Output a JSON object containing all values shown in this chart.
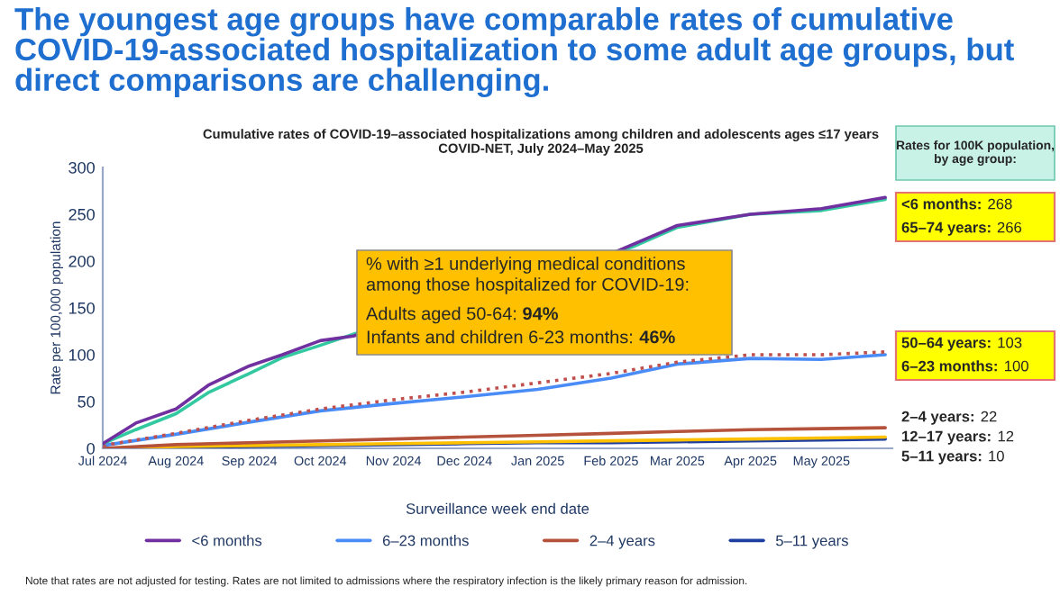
{
  "chart_data": {
    "type": "line",
    "title": "The youngest age groups have comparable rates of cumulative COVID-19-associated hospitalization to some adult age groups, but direct comparisons are challenging.",
    "subtitle": "Cumulative rates of COVID-19–associated hospitalizations among children and adolescents ages ≤17 years\nCOVID-NET, July 2024–May 2025",
    "xlabel": "Surveillance week end date",
    "ylabel": "Rate per 100,000 population",
    "xlim": [
      "2024-07-01",
      "2025-05-31"
    ],
    "xticks": [
      {
        "value": "2024-07-01",
        "label": "Jul 2024"
      },
      {
        "value": "2024-08-01",
        "label": "Aug 2024"
      },
      {
        "value": "2024-09-01",
        "label": "Sep 2024"
      },
      {
        "value": "2024-10-01",
        "label": "Oct 2024"
      },
      {
        "value": "2024-11-01",
        "label": "Nov 2024"
      },
      {
        "value": "2024-12-01",
        "label": "Dec 2024"
      },
      {
        "value": "2025-01-01",
        "label": "Jan 2025"
      },
      {
        "value": "2025-02-01",
        "label": "Feb 2025"
      },
      {
        "value": "2025-03-01",
        "label": "Mar 2025"
      },
      {
        "value": "2025-04-01",
        "label": "Apr 2025"
      },
      {
        "value": "2025-05-01",
        "label": "May 2025"
      }
    ],
    "ylim": [
      0,
      300
    ],
    "yticks": [
      0,
      50,
      100,
      150,
      200,
      250,
      300
    ],
    "x": [
      "2024-07-01",
      "2024-08-01",
      "2024-09-01",
      "2024-10-01",
      "2024-11-01",
      "2024-12-01",
      "2025-01-01",
      "2025-02-01",
      "2025-03-01",
      "2025-04-01",
      "2025-05-01",
      "2025-05-28"
    ],
    "series": [
      {
        "name": "<6 months",
        "color": "#7030a0",
        "x": [
          "2024-07-01",
          "2024-07-15",
          "2024-08-01",
          "2024-08-15",
          "2024-09-01",
          "2024-09-15",
          "2024-10-01",
          "2024-10-15",
          "2024-11-01",
          "2024-12-01",
          "2025-01-01",
          "2025-02-03",
          "2025-03-01",
          "2025-04-01",
          "2025-05-01",
          "2025-05-28"
        ],
        "values": [
          5,
          27,
          42,
          68,
          88,
          100,
          115,
          120,
          null,
          null,
          null,
          210,
          238,
          250,
          256,
          268
        ]
      },
      {
        "color": "#33c9a0",
        "x": [
          "2024-07-01",
          "2024-07-15",
          "2024-08-01",
          "2024-08-15",
          "2024-09-01",
          "2024-09-15",
          "2024-10-01",
          "2024-10-15",
          "2024-11-01",
          "2024-12-01",
          "2025-01-01",
          "2025-02-10",
          "2025-03-01",
          "2025-04-01",
          "2025-05-01",
          "2025-05-28"
        ],
        "values": [
          5,
          20,
          37,
          60,
          80,
          97,
          110,
          122,
          null,
          null,
          null,
          215,
          236,
          250,
          254,
          266
        ]
      },
      {
        "color": "#c0504d",
        "line_style": "dotted",
        "values": [
          3,
          16,
          30,
          42,
          52,
          60,
          70,
          80,
          92,
          100,
          100,
          103
        ]
      },
      {
        "name": "6–23 months",
        "color": "#4a8cf7",
        "values": [
          3,
          15,
          28,
          40,
          48,
          55,
          63,
          75,
          90,
          96,
          95,
          100
        ]
      },
      {
        "name": "2–4 years",
        "color": "#b5523b",
        "values": [
          0,
          4,
          6,
          8,
          10,
          12,
          14,
          16,
          18,
          20,
          21,
          22
        ]
      },
      {
        "color": "#ffc000",
        "values": [
          0,
          2,
          3,
          4,
          5,
          6,
          7,
          8,
          9,
          10,
          11,
          12
        ]
      },
      {
        "name": "5–11 years",
        "color": "#1f3fa0",
        "values": [
          0,
          1,
          2,
          3,
          4,
          5,
          6,
          6,
          7,
          8,
          9,
          10
        ]
      }
    ],
    "legend": "bottom",
    "annotations": [
      "Rates for 100K population,\nby age group:",
      "<6 months: 268",
      "65–74 years: 266",
      "50–64 years: 103",
      "6–23 months: 100",
      "2–4 years: 22",
      "12–17 years: 12",
      "5–11 years: 10",
      "% with ≥1 underlying medical conditions\namong those hospitalized for COVID-19:",
      "Adults aged 50-64: 94%",
      "Infants and children 6-23 months: 46%",
      "Note that rates are not adjusted for testing. Rates are not limited to admissions where the respiratory infection is the likely primary reason for admission."
    ]
  }
}
